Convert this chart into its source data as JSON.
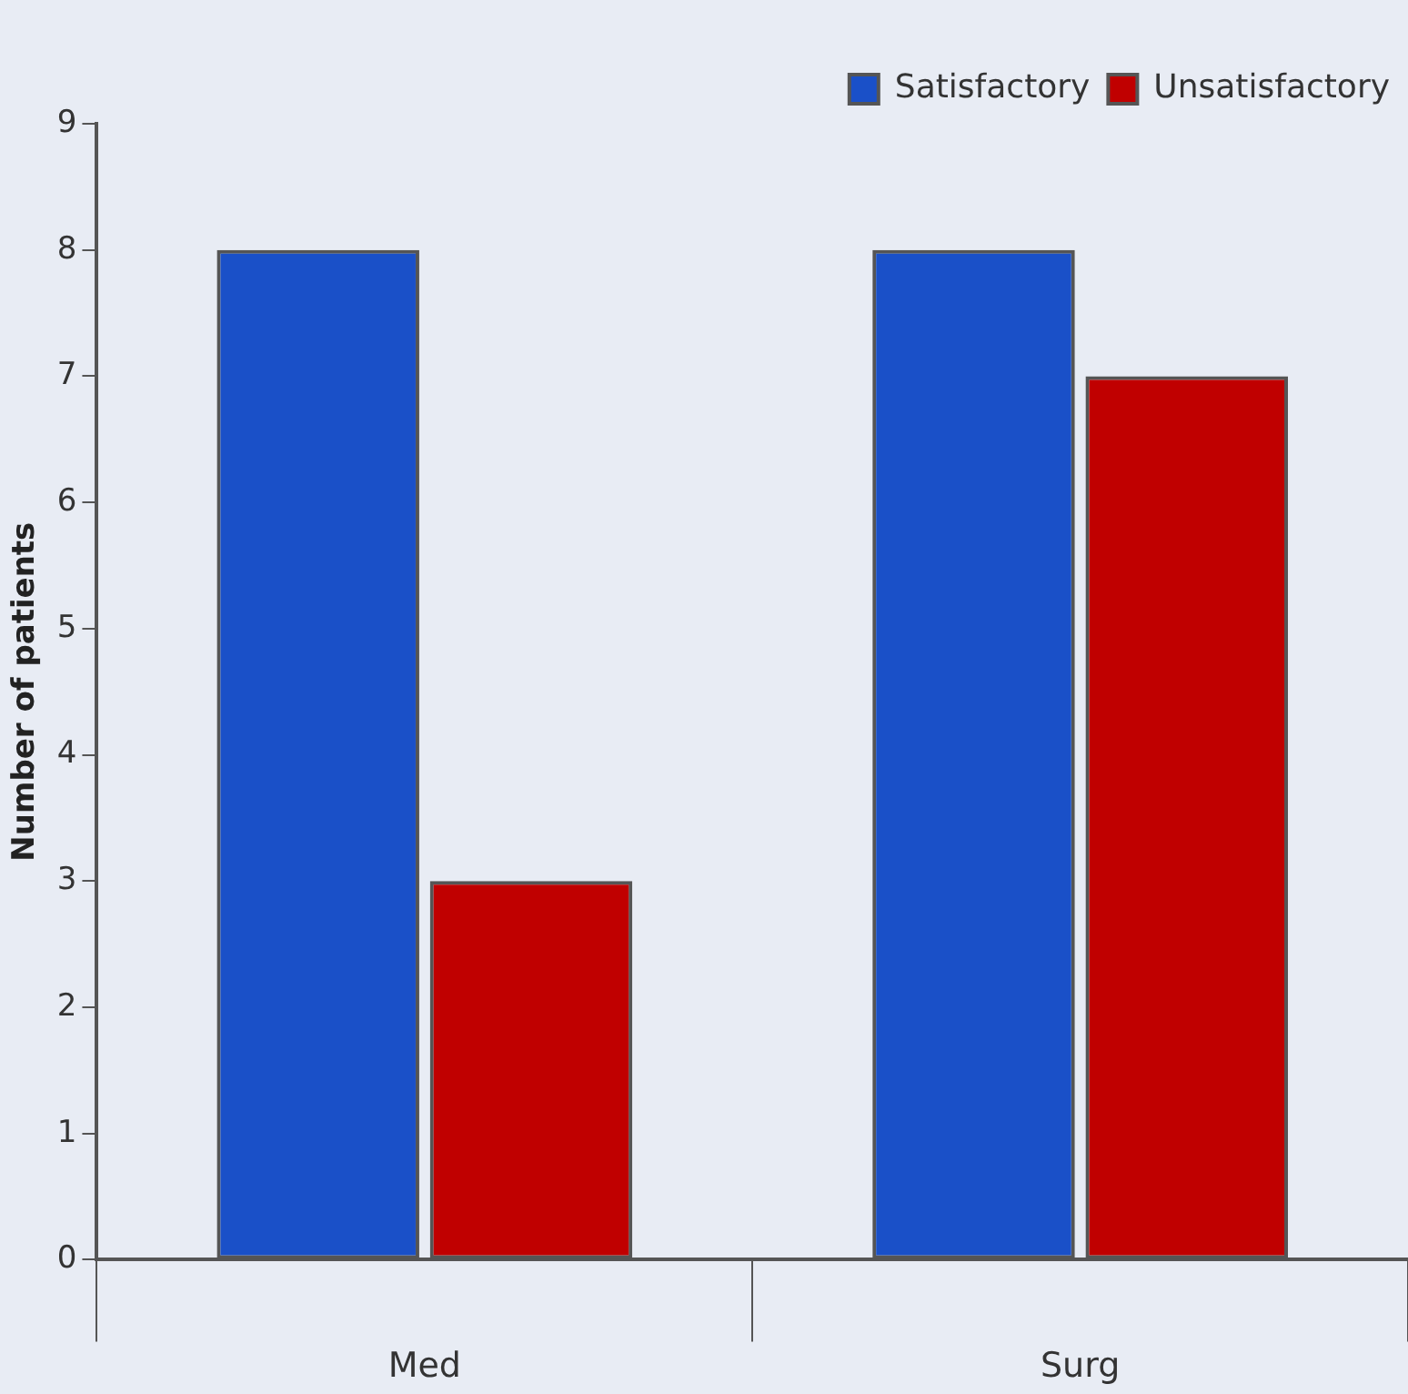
{
  "chart_data": {
    "type": "bar",
    "ylabel": "Number of patients",
    "categories": [
      "Med",
      "Surg"
    ],
    "series": [
      {
        "name": "Satisfactory",
        "color": "#1a50c8",
        "values": [
          8,
          8
        ]
      },
      {
        "name": "Unsatisfactory",
        "color": "#c00000",
        "values": [
          3,
          7
        ]
      }
    ],
    "ylim": [
      0,
      9
    ],
    "yticks": [
      0,
      1,
      2,
      3,
      4,
      5,
      6,
      7,
      8,
      9
    ],
    "grid": false,
    "legend": "top right"
  }
}
